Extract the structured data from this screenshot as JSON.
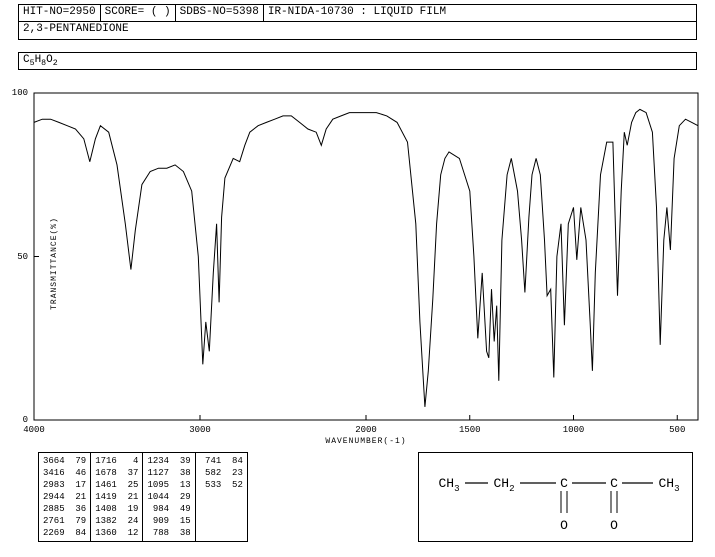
{
  "header": {
    "hit_no": "HIT-NO=2950",
    "score": "SCORE=  (  )",
    "sdbs_no": "SDBS-NO=5398",
    "ir_info": "IR-NIDA-10730 : LIQUID FILM"
  },
  "compound_name": "2,3-PENTANEDIONE",
  "formula": "C5H8O2",
  "chart": {
    "type": "line",
    "title": "",
    "xlabel": "WAVENUMBER(-1)",
    "ylabel": "TRANSMITTANCE(%)",
    "xlim": [
      4000,
      400
    ],
    "ylim": [
      0,
      100
    ],
    "xticks": [
      4000,
      3000,
      2000,
      1500,
      1000,
      500
    ],
    "yticks": [
      0,
      50,
      100
    ],
    "background_color": "#ffffff",
    "line_color": "#000000",
    "line_width": 1,
    "border_color": "#000000",
    "series": [
      {
        "x": 4000,
        "y": 91
      },
      {
        "x": 3950,
        "y": 92
      },
      {
        "x": 3900,
        "y": 92
      },
      {
        "x": 3850,
        "y": 91
      },
      {
        "x": 3800,
        "y": 90
      },
      {
        "x": 3750,
        "y": 89
      },
      {
        "x": 3700,
        "y": 86
      },
      {
        "x": 3664,
        "y": 79
      },
      {
        "x": 3630,
        "y": 86
      },
      {
        "x": 3600,
        "y": 90
      },
      {
        "x": 3550,
        "y": 88
      },
      {
        "x": 3500,
        "y": 78
      },
      {
        "x": 3450,
        "y": 60
      },
      {
        "x": 3416,
        "y": 46
      },
      {
        "x": 3390,
        "y": 58
      },
      {
        "x": 3350,
        "y": 72
      },
      {
        "x": 3300,
        "y": 76
      },
      {
        "x": 3250,
        "y": 77
      },
      {
        "x": 3200,
        "y": 77
      },
      {
        "x": 3150,
        "y": 78
      },
      {
        "x": 3100,
        "y": 76
      },
      {
        "x": 3050,
        "y": 70
      },
      {
        "x": 3010,
        "y": 50
      },
      {
        "x": 2983,
        "y": 17
      },
      {
        "x": 2965,
        "y": 30
      },
      {
        "x": 2944,
        "y": 21
      },
      {
        "x": 2920,
        "y": 45
      },
      {
        "x": 2900,
        "y": 60
      },
      {
        "x": 2885,
        "y": 36
      },
      {
        "x": 2870,
        "y": 62
      },
      {
        "x": 2850,
        "y": 74
      },
      {
        "x": 2800,
        "y": 80
      },
      {
        "x": 2761,
        "y": 79
      },
      {
        "x": 2730,
        "y": 84
      },
      {
        "x": 2700,
        "y": 88
      },
      {
        "x": 2650,
        "y": 90
      },
      {
        "x": 2600,
        "y": 91
      },
      {
        "x": 2550,
        "y": 92
      },
      {
        "x": 2500,
        "y": 93
      },
      {
        "x": 2450,
        "y": 93
      },
      {
        "x": 2400,
        "y": 91
      },
      {
        "x": 2350,
        "y": 89
      },
      {
        "x": 2300,
        "y": 88
      },
      {
        "x": 2269,
        "y": 84
      },
      {
        "x": 2240,
        "y": 89
      },
      {
        "x": 2200,
        "y": 92
      },
      {
        "x": 2150,
        "y": 93
      },
      {
        "x": 2100,
        "y": 94
      },
      {
        "x": 2050,
        "y": 94
      },
      {
        "x": 2000,
        "y": 94
      },
      {
        "x": 1950,
        "y": 94
      },
      {
        "x": 1900,
        "y": 93
      },
      {
        "x": 1850,
        "y": 91
      },
      {
        "x": 1800,
        "y": 85
      },
      {
        "x": 1760,
        "y": 60
      },
      {
        "x": 1740,
        "y": 30
      },
      {
        "x": 1716,
        "y": 4
      },
      {
        "x": 1700,
        "y": 15
      },
      {
        "x": 1678,
        "y": 37
      },
      {
        "x": 1660,
        "y": 60
      },
      {
        "x": 1640,
        "y": 75
      },
      {
        "x": 1620,
        "y": 80
      },
      {
        "x": 1600,
        "y": 82
      },
      {
        "x": 1550,
        "y": 80
      },
      {
        "x": 1500,
        "y": 70
      },
      {
        "x": 1480,
        "y": 50
      },
      {
        "x": 1461,
        "y": 25
      },
      {
        "x": 1440,
        "y": 45
      },
      {
        "x": 1419,
        "y": 21
      },
      {
        "x": 1408,
        "y": 19
      },
      {
        "x": 1395,
        "y": 40
      },
      {
        "x": 1382,
        "y": 24
      },
      {
        "x": 1370,
        "y": 35
      },
      {
        "x": 1360,
        "y": 12
      },
      {
        "x": 1345,
        "y": 55
      },
      {
        "x": 1320,
        "y": 75
      },
      {
        "x": 1300,
        "y": 80
      },
      {
        "x": 1270,
        "y": 70
      },
      {
        "x": 1250,
        "y": 55
      },
      {
        "x": 1234,
        "y": 39
      },
      {
        "x": 1215,
        "y": 62
      },
      {
        "x": 1200,
        "y": 75
      },
      {
        "x": 1180,
        "y": 80
      },
      {
        "x": 1160,
        "y": 75
      },
      {
        "x": 1140,
        "y": 55
      },
      {
        "x": 1127,
        "y": 38
      },
      {
        "x": 1110,
        "y": 40
      },
      {
        "x": 1095,
        "y": 13
      },
      {
        "x": 1080,
        "y": 50
      },
      {
        "x": 1060,
        "y": 60
      },
      {
        "x": 1044,
        "y": 29
      },
      {
        "x": 1025,
        "y": 60
      },
      {
        "x": 1000,
        "y": 65
      },
      {
        "x": 984,
        "y": 49
      },
      {
        "x": 965,
        "y": 65
      },
      {
        "x": 940,
        "y": 55
      },
      {
        "x": 920,
        "y": 30
      },
      {
        "x": 909,
        "y": 15
      },
      {
        "x": 895,
        "y": 45
      },
      {
        "x": 870,
        "y": 75
      },
      {
        "x": 840,
        "y": 85
      },
      {
        "x": 810,
        "y": 85
      },
      {
        "x": 788,
        "y": 38
      },
      {
        "x": 770,
        "y": 70
      },
      {
        "x": 755,
        "y": 88
      },
      {
        "x": 741,
        "y": 84
      },
      {
        "x": 720,
        "y": 91
      },
      {
        "x": 700,
        "y": 94
      },
      {
        "x": 680,
        "y": 95
      },
      {
        "x": 650,
        "y": 94
      },
      {
        "x": 620,
        "y": 88
      },
      {
        "x": 600,
        "y": 65
      },
      {
        "x": 582,
        "y": 23
      },
      {
        "x": 565,
        "y": 55
      },
      {
        "x": 550,
        "y": 65
      },
      {
        "x": 533,
        "y": 52
      },
      {
        "x": 515,
        "y": 80
      },
      {
        "x": 490,
        "y": 90
      },
      {
        "x": 460,
        "y": 92
      },
      {
        "x": 430,
        "y": 91
      },
      {
        "x": 400,
        "y": 90
      }
    ]
  },
  "peak_table": {
    "columns": 4,
    "rows": [
      [
        [
          "3664",
          "79"
        ],
        [
          "1716",
          " 4"
        ],
        [
          "1234",
          "39"
        ],
        [
          "741",
          "84"
        ]
      ],
      [
        [
          "3416",
          "46"
        ],
        [
          "1678",
          "37"
        ],
        [
          "1127",
          "38"
        ],
        [
          "582",
          "23"
        ]
      ],
      [
        [
          "2983",
          "17"
        ],
        [
          "1461",
          "25"
        ],
        [
          "1095",
          "13"
        ],
        [
          "533",
          "52"
        ]
      ],
      [
        [
          "2944",
          "21"
        ],
        [
          "1419",
          "21"
        ],
        [
          "1044",
          "29"
        ],
        [
          "",
          ""
        ]
      ],
      [
        [
          "2885",
          "36"
        ],
        [
          "1408",
          "19"
        ],
        [
          " 984",
          "49"
        ],
        [
          "",
          ""
        ]
      ],
      [
        [
          "2761",
          "79"
        ],
        [
          "1382",
          "24"
        ],
        [
          " 909",
          "15"
        ],
        [
          "",
          ""
        ]
      ],
      [
        [
          "2269",
          "84"
        ],
        [
          "1360",
          "12"
        ],
        [
          " 788",
          "38"
        ],
        [
          "",
          ""
        ]
      ]
    ]
  },
  "structure": {
    "groups": [
      "CH3",
      "CH2",
      "C",
      "C",
      "CH3"
    ],
    "double_bond_O_at": [
      2,
      3
    ],
    "font_size": 13,
    "line_color": "#000000"
  }
}
